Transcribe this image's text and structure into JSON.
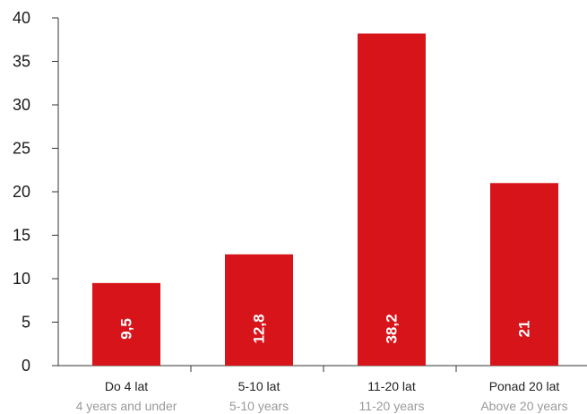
{
  "chart_data": {
    "type": "bar",
    "categories": [
      "Do 4 lat",
      "5-10 lat",
      "11-20 lat",
      "Ponad 20 lat"
    ],
    "categories_secondary": [
      "4 years and under",
      "5-10 years",
      "11-20 years",
      "Above 20 years"
    ],
    "values": [
      9.5,
      12.8,
      38.2,
      21
    ],
    "value_labels": [
      "9,5",
      "12,8",
      "38,2",
      "21"
    ],
    "yticks": [
      "0",
      "5",
      "10",
      "15",
      "20",
      "25",
      "30",
      "35",
      "40"
    ],
    "ylim": [
      0,
      40
    ],
    "grid": false,
    "title": "",
    "xlabel": "",
    "ylabel": "",
    "bar_color": "#d7141a",
    "bar_label_color": "#ffffff"
  }
}
